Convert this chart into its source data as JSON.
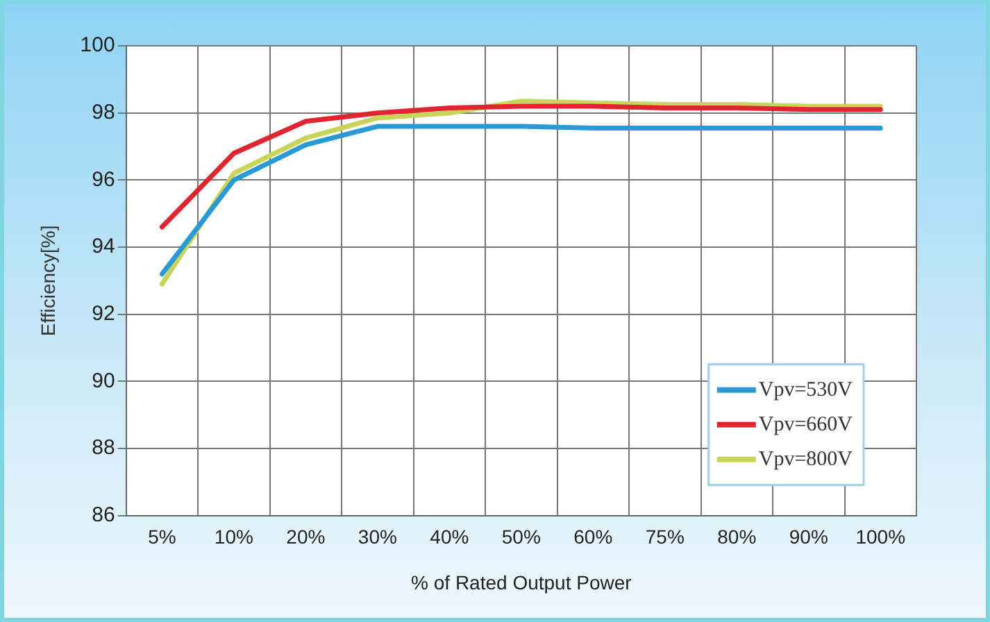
{
  "chart_data": {
    "type": "line",
    "xlabel": "% of Rated Output Power",
    "ylabel": "Efficiency[%]",
    "categories": [
      "5%",
      "10%",
      "20%",
      "30%",
      "40%",
      "50%",
      "60%",
      "75%",
      "80%",
      "90%",
      "100%"
    ],
    "series": [
      {
        "name": "Vpv=530V",
        "color": "#2a9ad6",
        "values": [
          93.2,
          96.0,
          97.05,
          97.6,
          97.6,
          97.6,
          97.55,
          97.55,
          97.55,
          97.55,
          97.55
        ]
      },
      {
        "name": "Vpv=660V",
        "color": "#e02430",
        "values": [
          94.6,
          96.8,
          97.75,
          98.0,
          98.15,
          98.2,
          98.2,
          98.15,
          98.15,
          98.1,
          98.1
        ]
      },
      {
        "name": "Vpv=800V",
        "color": "#c8d45a",
        "values": [
          92.9,
          96.2,
          97.25,
          97.85,
          98.0,
          98.35,
          98.3,
          98.25,
          98.25,
          98.2,
          98.2
        ]
      }
    ],
    "ylim": [
      86,
      100
    ],
    "yticks": [
      86,
      88,
      90,
      92,
      94,
      96,
      98,
      100
    ],
    "grid": true,
    "legend": "bottom right",
    "marker": "none",
    "line_style": "solid"
  }
}
